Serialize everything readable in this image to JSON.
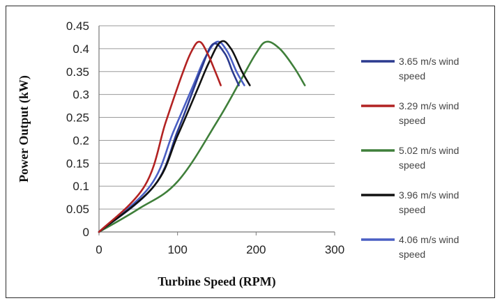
{
  "chart_data": {
    "type": "line",
    "title": "",
    "xlabel": "Turbine Speed (RPM)",
    "ylabel": "Power Output (kW)",
    "xlim": [
      0,
      300
    ],
    "ylim": [
      0,
      0.45
    ],
    "x_ticks": [
      "0",
      "100",
      "200",
      "300"
    ],
    "y_ticks": [
      "0",
      "0.05",
      "0.1",
      "0.15",
      "0.2",
      "0.25",
      "0.3",
      "0.35",
      "0.4",
      "0.45"
    ],
    "grid": true,
    "legend_position": "right",
    "series": [
      {
        "name": "3.65 m/s wind speed",
        "color": "#2b3a8f",
        "x": [
          0,
          70,
          100,
          120,
          130,
          145,
          160,
          170,
          178
        ],
        "y": [
          0,
          0.1,
          0.22,
          0.31,
          0.355,
          0.41,
          0.39,
          0.35,
          0.32
        ]
      },
      {
        "name": "3.29 m/s wind speed",
        "color": "#b22222",
        "x": [
          0,
          58,
          85,
          105,
          118,
          128,
          138,
          148,
          155
        ],
        "y": [
          0,
          0.1,
          0.24,
          0.34,
          0.395,
          0.415,
          0.39,
          0.35,
          0.32
        ]
      },
      {
        "name": "5.02 m/s wind speed",
        "color": "#3f7f3a",
        "x": [
          0,
          50,
          100,
          150,
          180,
          200,
          213,
          230,
          248,
          262
        ],
        "y": [
          0,
          0.05,
          0.11,
          0.24,
          0.33,
          0.39,
          0.415,
          0.4,
          0.36,
          0.32
        ]
      },
      {
        "name": "3.96 m/s wind speed",
        "color": "#111111",
        "x": [
          0,
          70,
          100,
          125,
          140,
          155,
          168,
          182,
          192
        ],
        "y": [
          0,
          0.1,
          0.21,
          0.31,
          0.37,
          0.415,
          0.4,
          0.35,
          0.32
        ]
      },
      {
        "name": "4.06 m/s wind speed",
        "color": "#4a5fc4",
        "x": [
          0,
          65,
          95,
          120,
          135,
          150,
          163,
          175,
          185
        ],
        "y": [
          0,
          0.1,
          0.22,
          0.32,
          0.38,
          0.415,
          0.395,
          0.35,
          0.32
        ]
      }
    ]
  }
}
